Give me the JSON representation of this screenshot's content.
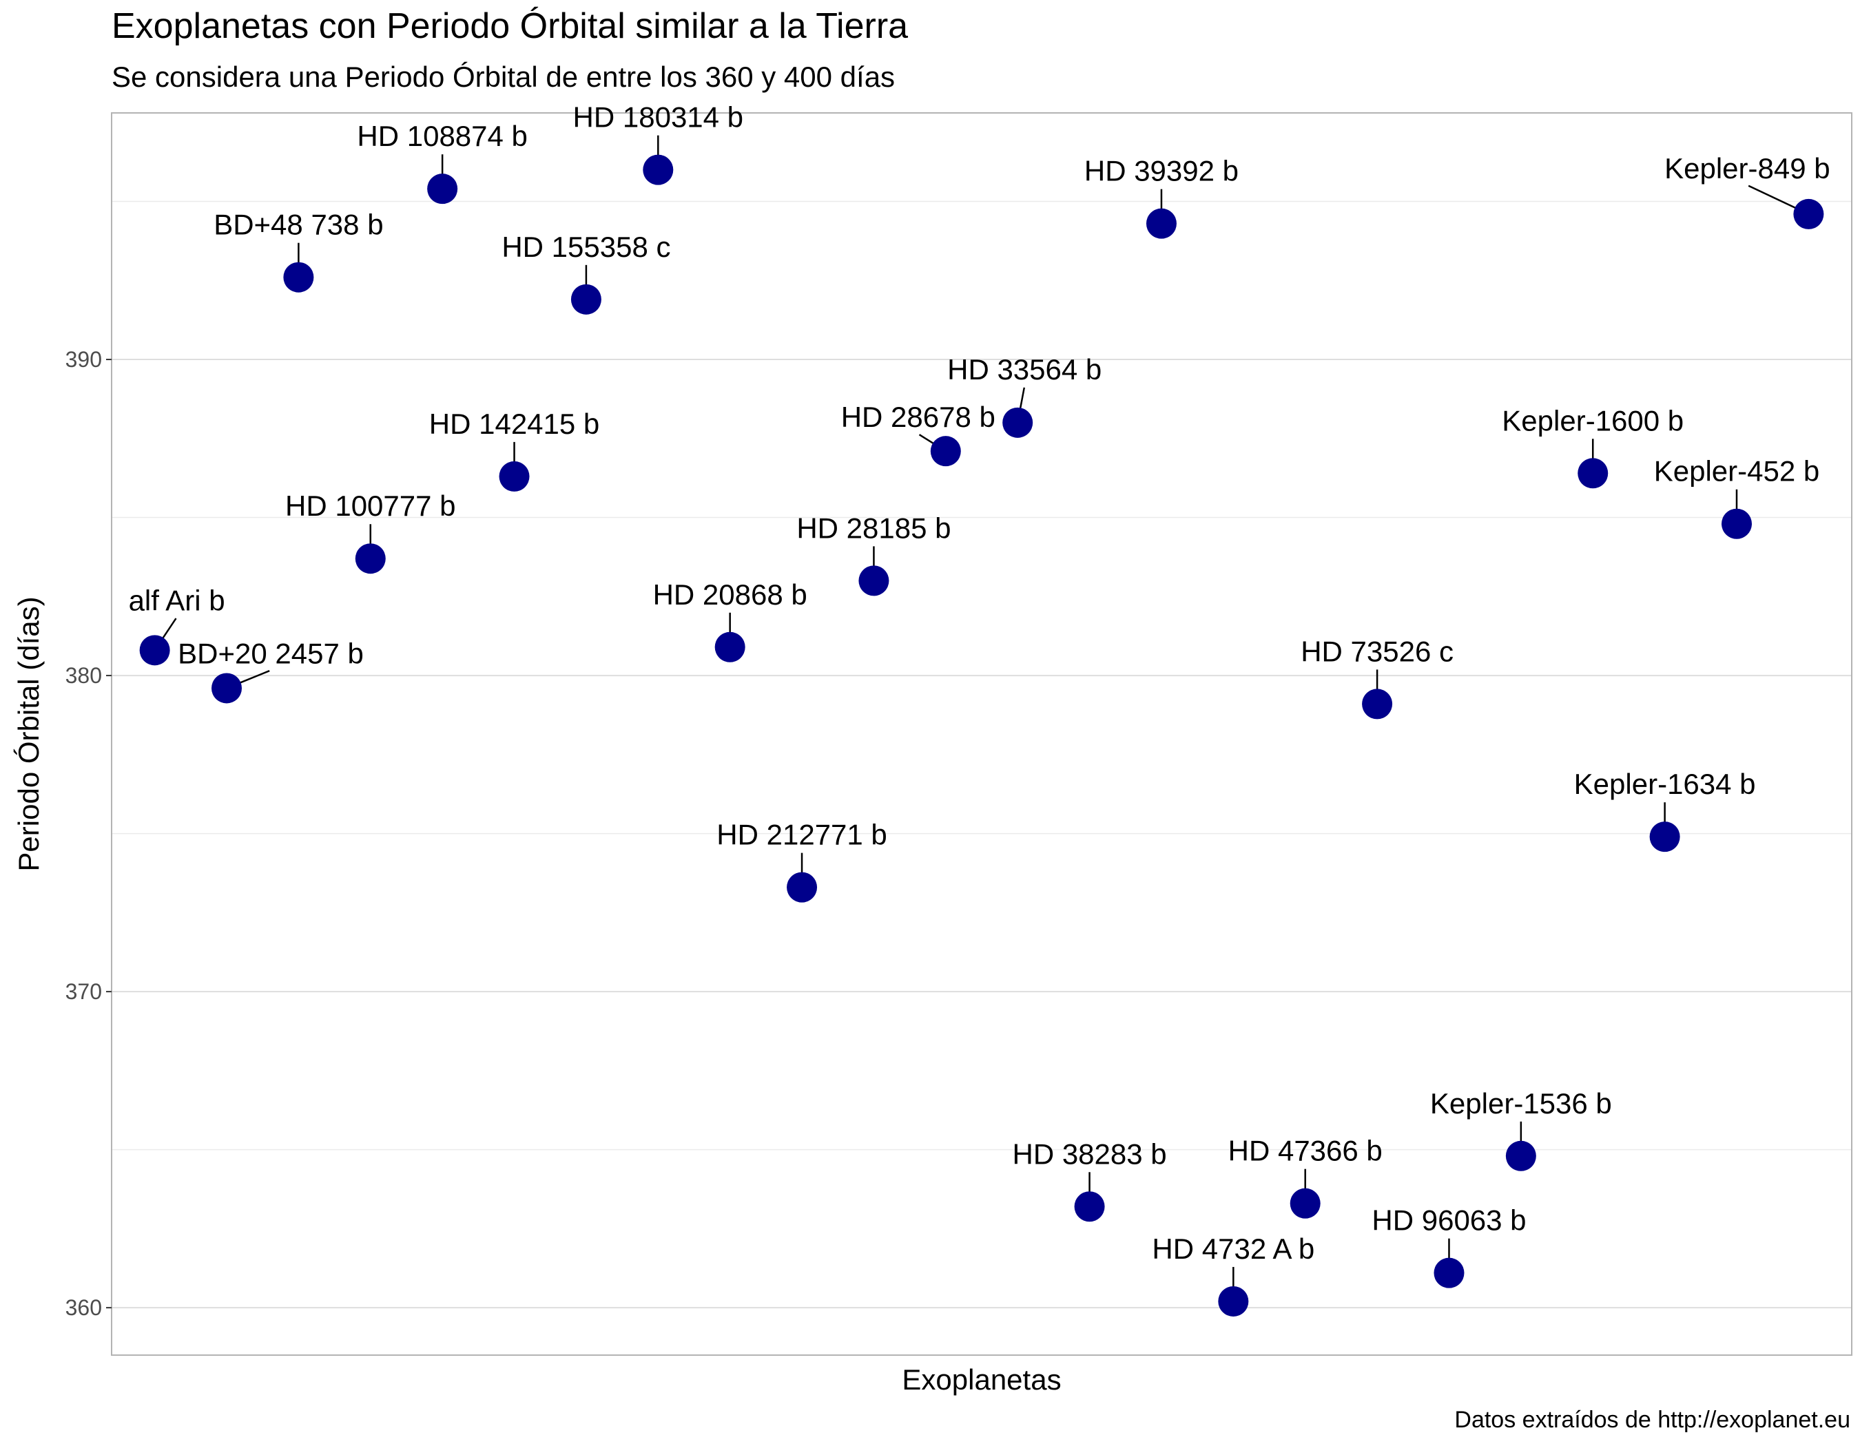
{
  "chart_data": {
    "type": "scatter",
    "title": "Exoplanetas con Periodo Órbital similar a la Tierra",
    "subtitle": "Se considera una Periodo Órbital de entre los 360 y 400 días",
    "xlabel": "Exoplanetas",
    "ylabel": "Periodo Órbital (días)",
    "caption": "Datos extraídos de http://exoplanet.eu",
    "ylim": [
      358.5,
      397.8
    ],
    "yticks": [
      360,
      370,
      380,
      390
    ],
    "grid": true,
    "point_color": "#00008B",
    "label_color": "#000000",
    "points": [
      {
        "name": "alf Ari b",
        "y": 380.8
      },
      {
        "name": "BD+20 2457 b",
        "y": 379.6
      },
      {
        "name": "BD+48 738 b",
        "y": 392.6
      },
      {
        "name": "HD 100777 b",
        "y": 383.7
      },
      {
        "name": "HD 108874 b",
        "y": 395.4
      },
      {
        "name": "HD 142415 b",
        "y": 386.3
      },
      {
        "name": "HD 155358 c",
        "y": 391.9
      },
      {
        "name": "HD 180314 b",
        "y": 396.0
      },
      {
        "name": "HD 20868 b",
        "y": 380.9
      },
      {
        "name": "HD 212771 b",
        "y": 373.3
      },
      {
        "name": "HD 28185 b",
        "y": 383.0
      },
      {
        "name": "HD 28678 b",
        "y": 387.1
      },
      {
        "name": "HD 33564 b",
        "y": 388.0
      },
      {
        "name": "HD 38283 b",
        "y": 363.2
      },
      {
        "name": "HD 39392 b",
        "y": 394.3
      },
      {
        "name": "HD 4732 A b",
        "y": 360.2
      },
      {
        "name": "HD 47366 b",
        "y": 363.3
      },
      {
        "name": "HD 73526 c",
        "y": 379.1
      },
      {
        "name": "HD 96063 b",
        "y": 361.1
      },
      {
        "name": "Kepler-1536 b",
        "y": 364.8
      },
      {
        "name": "Kepler-1600 b",
        "y": 386.4
      },
      {
        "name": "Kepler-1634 b",
        "y": 374.9
      },
      {
        "name": "Kepler-452 b",
        "y": 384.8
      },
      {
        "name": "Kepler-849 b",
        "y": 394.6
      }
    ]
  }
}
